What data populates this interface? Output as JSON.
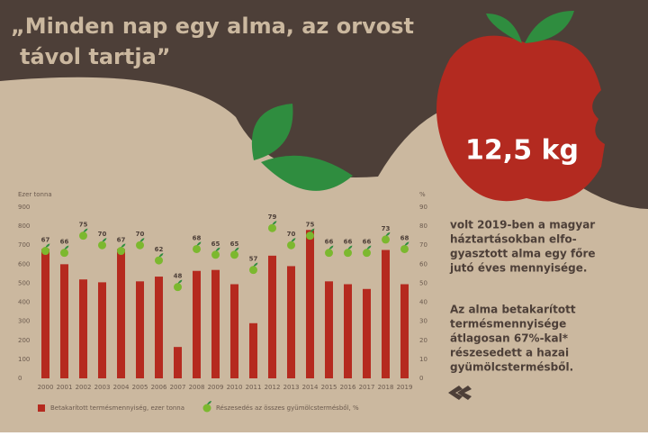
{
  "header": {
    "title": [
      "„Minden nap egy alma, az orvost",
      "távol tartja”"
    ]
  },
  "callout": {
    "amount": "12,5 kg",
    "text": [
      "volt 2019-ben a magyar",
      "háztartásokban elfo-",
      "gyasztott alma egy főre",
      "jutó éves mennyisége."
    ],
    "note": [
      "Az alma betakarított",
      "termésmennyisége",
      "átlagosan 67%-kal*",
      "részesedett a hazai",
      "gyümölcstermésből."
    ]
  },
  "chart_data": {
    "type": "bar",
    "y_label": "Ezer tonna",
    "y2_label": "%",
    "categories": [
      "2000",
      "2001",
      "2002",
      "2003",
      "2004",
      "2005",
      "2006",
      "2007",
      "2008",
      "2009",
      "2010",
      "2011",
      "2012",
      "2013",
      "2014",
      "2015",
      "2016",
      "2017",
      "2018",
      "2019"
    ],
    "series": [
      {
        "name": "Betakarított termésmennyiség, ezer tonna",
        "color": "#b52a1f",
        "values": [
          680,
          600,
          520,
          505,
          680,
          510,
          535,
          165,
          565,
          570,
          495,
          290,
          645,
          590,
          780,
          510,
          495,
          470,
          675,
          495
        ]
      },
      {
        "name": "Részesedés az összes gyümölcstermésből, %",
        "color": "#7cb82f",
        "axis": "y2",
        "values": [
          67,
          66,
          75,
          70,
          67,
          70,
          62,
          48,
          68,
          65,
          65,
          57,
          79,
          70,
          75,
          66,
          66,
          66,
          73,
          68
        ]
      }
    ],
    "ylim": [
      0,
      900
    ],
    "yticks": [
      0,
      100,
      200,
      300,
      400,
      500,
      600,
      700,
      800,
      900
    ],
    "y2lim": [
      0,
      90
    ],
    "y2ticks": [
      0,
      10,
      20,
      30,
      40,
      50,
      60,
      70,
      80,
      90
    ]
  }
}
